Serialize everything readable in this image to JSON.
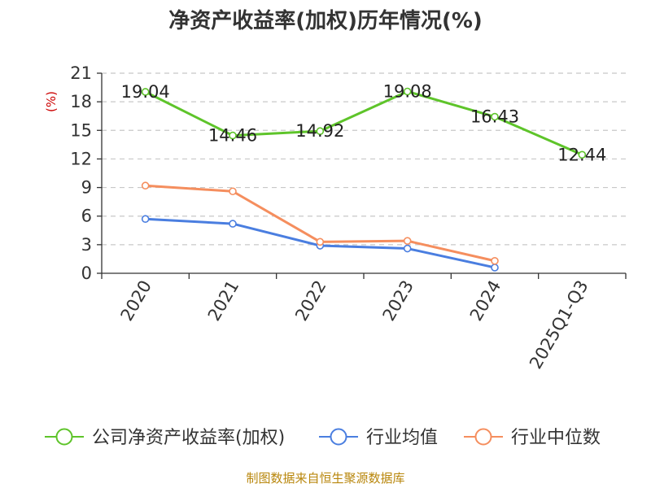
{
  "chart_data": {
    "type": "line",
    "title": "净资产收益率(加权)历年情况(%)",
    "ylabel": "(%)",
    "xlabel": "",
    "categories": [
      "2020",
      "2021",
      "2022",
      "2023",
      "2024",
      "2025Q1-Q3"
    ],
    "ylim": [
      0,
      21
    ],
    "yticks": [
      0,
      3,
      6,
      9,
      12,
      15,
      18,
      21
    ],
    "grid": true,
    "legend_position": "bottom",
    "series": [
      {
        "name": "公司净资产收益率(加权)",
        "color": "#5ec42a",
        "values": [
          19.04,
          14.46,
          14.92,
          19.08,
          16.43,
          12.44
        ],
        "labels": [
          "19.04",
          "14.46",
          "14.92",
          "19.08",
          "16.43",
          "12.44"
        ]
      },
      {
        "name": "行业均值",
        "color": "#4a7ee0",
        "values": [
          5.7,
          5.2,
          2.9,
          2.6,
          0.6,
          null
        ]
      },
      {
        "name": "行业中位数",
        "color": "#f58e5e",
        "values": [
          9.2,
          8.6,
          3.3,
          3.4,
          1.3,
          null
        ]
      }
    ]
  },
  "footer": {
    "source": "制图数据来自恒生聚源数据库"
  }
}
